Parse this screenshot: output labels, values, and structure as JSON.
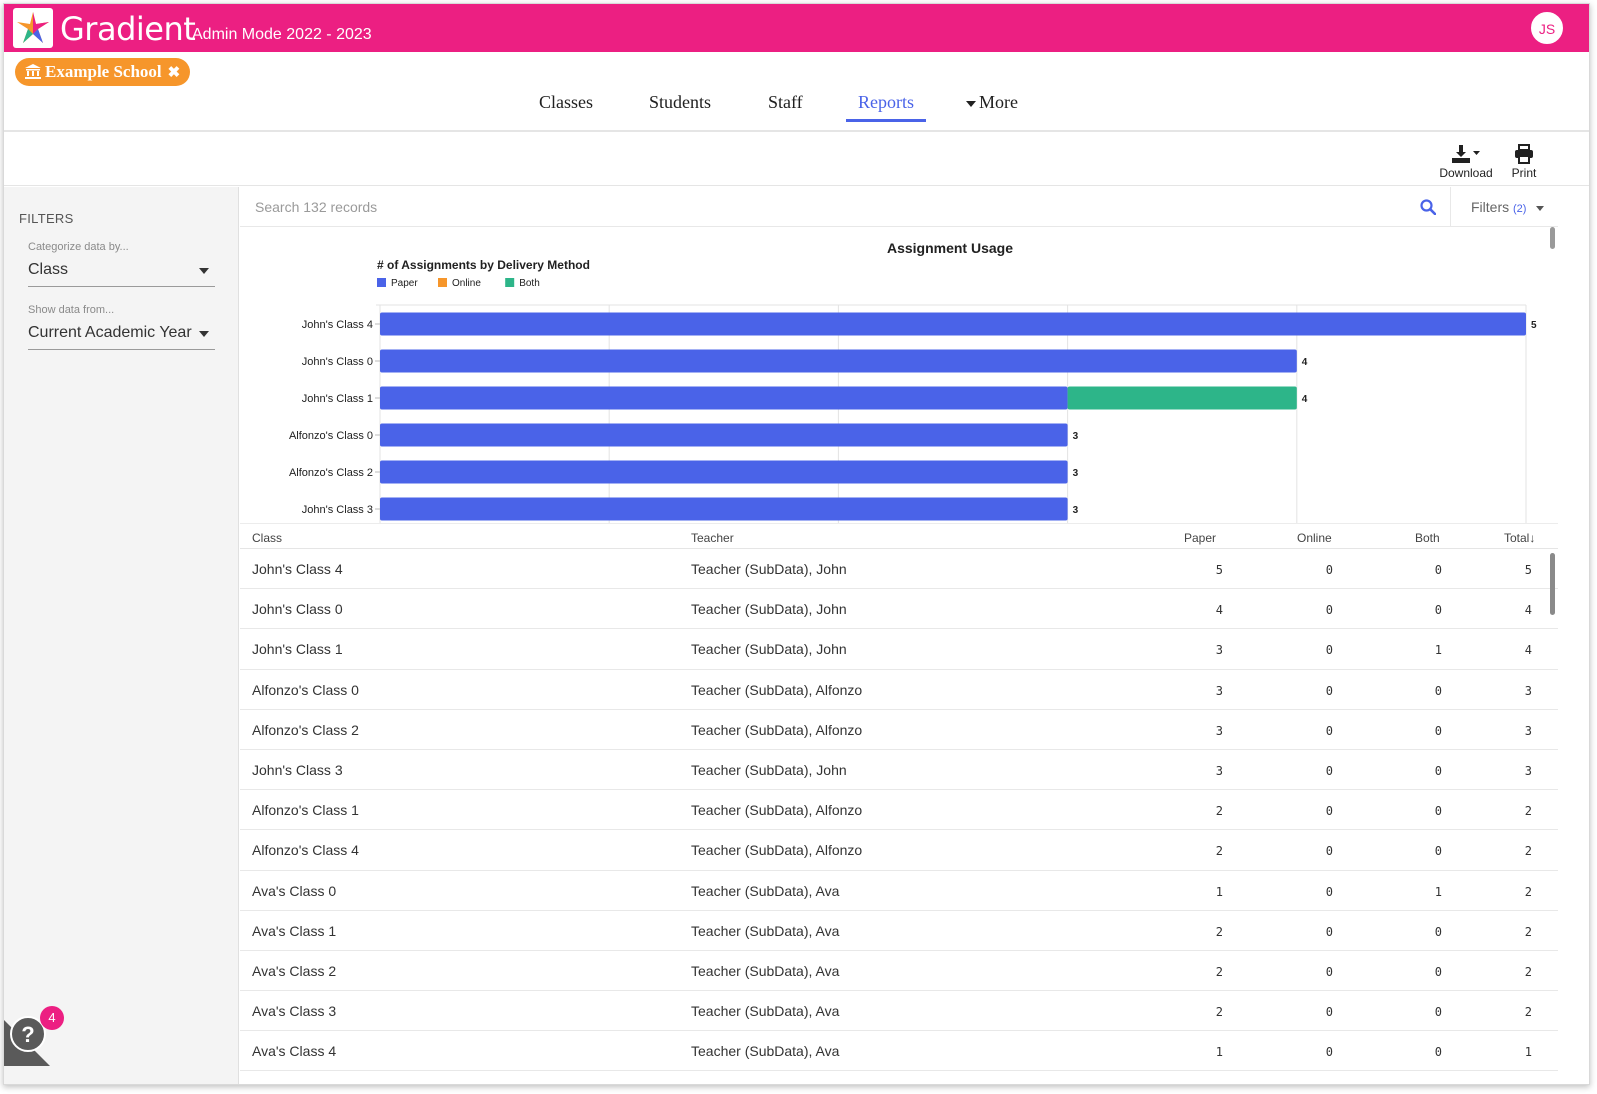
{
  "header": {
    "app_name": "Gradient",
    "mode_label": "Admin Mode 2022 - 2023",
    "user_initials": "JS",
    "brand_color": "#ec1f82"
  },
  "school_chip": {
    "label": "Example School",
    "color": "#f6962b"
  },
  "nav": {
    "tabs": [
      {
        "label": "Classes",
        "active": false
      },
      {
        "label": "Students",
        "active": false
      },
      {
        "label": "Staff",
        "active": false
      },
      {
        "label": "Reports",
        "active": true
      },
      {
        "label": "More",
        "active": false
      }
    ],
    "accent_color": "#4a63e8"
  },
  "toolbar": {
    "download_label": "Download",
    "print_label": "Print"
  },
  "sidebar": {
    "title": "FILTERS",
    "categorize": {
      "label": "Categorize data by...",
      "value": "Class"
    },
    "show_from": {
      "label": "Show data from...",
      "value": "Current Academic Year"
    }
  },
  "search": {
    "placeholder": "Search 132 records",
    "filters_label": "Filters",
    "filters_count": "(2)"
  },
  "chart_data": {
    "type": "bar",
    "orientation": "horizontal",
    "stacked": true,
    "title": "Assignment Usage",
    "subtitle": "# of Assignments by Delivery Method",
    "categories": [
      "John's Class 4",
      "John's Class 0",
      "John's Class 1",
      "Alfonzo's Class 0",
      "Alfonzo's Class 2",
      "John's Class 3"
    ],
    "series": [
      {
        "name": "Paper",
        "color": "#4a63e8",
        "values": [
          5,
          4,
          3,
          3,
          3,
          3
        ]
      },
      {
        "name": "Online",
        "color": "#f6962b",
        "values": [
          0,
          0,
          0,
          0,
          0,
          0
        ]
      },
      {
        "name": "Both",
        "color": "#2db589",
        "values": [
          0,
          0,
          1,
          0,
          0,
          0
        ]
      }
    ],
    "totals": [
      5,
      4,
      4,
      3,
      3,
      3
    ],
    "xlim": [
      0,
      5
    ],
    "grid": true,
    "legend": "top-left"
  },
  "table": {
    "columns": [
      "Class",
      "Teacher",
      "Paper",
      "Online",
      "Both",
      "Total"
    ],
    "sort_indicator": "↓",
    "rows": [
      {
        "class": "John's Class 4",
        "teacher": "Teacher (SubData), John",
        "paper": "5",
        "online": "0",
        "both": "0",
        "total": "5"
      },
      {
        "class": "John's Class 0",
        "teacher": "Teacher (SubData), John",
        "paper": "4",
        "online": "0",
        "both": "0",
        "total": "4"
      },
      {
        "class": "John's Class 1",
        "teacher": "Teacher (SubData), John",
        "paper": "3",
        "online": "0",
        "both": "1",
        "total": "4"
      },
      {
        "class": "Alfonzo's Class 0",
        "teacher": "Teacher (SubData), Alfonzo",
        "paper": "3",
        "online": "0",
        "both": "0",
        "total": "3"
      },
      {
        "class": "Alfonzo's Class 2",
        "teacher": "Teacher (SubData), Alfonzo",
        "paper": "3",
        "online": "0",
        "both": "0",
        "total": "3"
      },
      {
        "class": "John's Class 3",
        "teacher": "Teacher (SubData), John",
        "paper": "3",
        "online": "0",
        "both": "0",
        "total": "3"
      },
      {
        "class": "Alfonzo's Class 1",
        "teacher": "Teacher (SubData), Alfonzo",
        "paper": "2",
        "online": "0",
        "both": "0",
        "total": "2"
      },
      {
        "class": "Alfonzo's Class 4",
        "teacher": "Teacher (SubData), Alfonzo",
        "paper": "2",
        "online": "0",
        "both": "0",
        "total": "2"
      },
      {
        "class": "Ava's Class 0",
        "teacher": "Teacher (SubData), Ava",
        "paper": "1",
        "online": "0",
        "both": "1",
        "total": "2"
      },
      {
        "class": "Ava's Class 1",
        "teacher": "Teacher (SubData), Ava",
        "paper": "2",
        "online": "0",
        "both": "0",
        "total": "2"
      },
      {
        "class": "Ava's Class 2",
        "teacher": "Teacher (SubData), Ava",
        "paper": "2",
        "online": "0",
        "both": "0",
        "total": "2"
      },
      {
        "class": "Ava's Class 3",
        "teacher": "Teacher (SubData), Ava",
        "paper": "2",
        "online": "0",
        "both": "0",
        "total": "2"
      },
      {
        "class": "Ava's Class 4",
        "teacher": "Teacher (SubData), Ava",
        "paper": "1",
        "online": "0",
        "both": "0",
        "total": "1"
      }
    ]
  },
  "help": {
    "badge_count": "4"
  }
}
